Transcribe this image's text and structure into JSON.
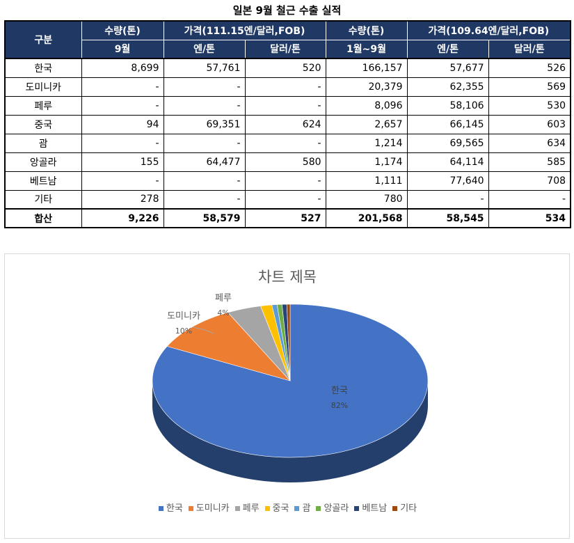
{
  "title": "일본 9월 철근 수출 실적",
  "table": {
    "header_row1": {
      "category": "구분",
      "qty1": "수량(톤)",
      "price1": "가격(111.15엔/달러,FOB)",
      "qty2": "수량(톤)",
      "price2": "가격(109.64엔/달러,FOB)"
    },
    "header_row2": [
      "9월",
      "엔/톤",
      "달러/톤",
      "1월~9월",
      "엔/톤",
      "달러/톤"
    ],
    "rows": [
      {
        "name": "한국",
        "cells": [
          "8,699",
          "57,761",
          "520",
          "166,157",
          "57,677",
          "526"
        ]
      },
      {
        "name": "도미니카",
        "cells": [
          "-",
          "-",
          "-",
          "20,379",
          "62,355",
          "569"
        ]
      },
      {
        "name": "페루",
        "cells": [
          "-",
          "-",
          "-",
          "8,096",
          "58,106",
          "530"
        ]
      },
      {
        "name": "중국",
        "cells": [
          "94",
          "69,351",
          "624",
          "2,657",
          "66,145",
          "603"
        ]
      },
      {
        "name": "괌",
        "cells": [
          "-",
          "-",
          "-",
          "1,214",
          "69,565",
          "634"
        ]
      },
      {
        "name": "앙골라",
        "cells": [
          "155",
          "64,477",
          "580",
          "1,174",
          "64,114",
          "585"
        ]
      },
      {
        "name": "베트남",
        "cells": [
          "-",
          "-",
          "-",
          "1,111",
          "77,640",
          "708"
        ]
      },
      {
        "name": "기타",
        "cells": [
          "278",
          "-",
          "-",
          "780",
          "-",
          "-"
        ]
      }
    ],
    "total": {
      "name": "합산",
      "cells": [
        "9,226",
        "58,579",
        "527",
        "201,568",
        "58,545",
        "534"
      ]
    }
  },
  "chart_data": {
    "type": "pie",
    "title": "차트 제목",
    "categories": [
      "한국",
      "도미니카",
      "페루",
      "중국",
      "괌",
      "앙골라",
      "베트남",
      "기타"
    ],
    "values": [
      166157,
      20379,
      8096,
      2657,
      1214,
      1174,
      1111,
      780
    ],
    "colors": [
      "#4472c4",
      "#ed7d31",
      "#a5a5a5",
      "#ffc000",
      "#5b9bd5",
      "#70ad47",
      "#264478",
      "#9e480e"
    ],
    "data_labels": [
      {
        "category": "한국",
        "percent": "82%"
      },
      {
        "category": "도미니카",
        "percent": "10%"
      },
      {
        "category": "페루",
        "percent": "4%"
      }
    ],
    "legend_position": "bottom",
    "style": "3d"
  }
}
